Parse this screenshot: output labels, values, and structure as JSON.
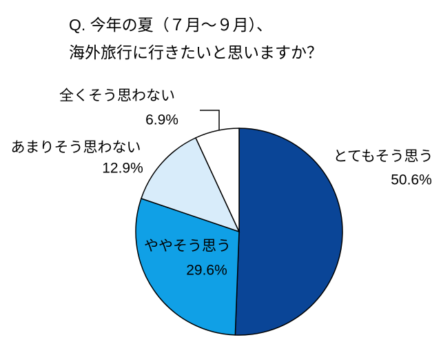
{
  "chart_data": {
    "type": "pie",
    "title": [
      "Q. 今年の夏（７月～９月）、",
      "海外旅行に行きたいと思いますか？"
    ],
    "categories": [
      "とてもそう思う",
      "ややそう思う",
      "あまりそう思わない",
      "全くそう思わない"
    ],
    "values": [
      50.6,
      29.6,
      12.9,
      6.9
    ],
    "value_labels": [
      "50.6%",
      "29.6%",
      "12.9%",
      "6.9%"
    ],
    "colors": [
      "#0a4597",
      "#10a0e6",
      "#d8ecfa",
      "#ffffff"
    ]
  }
}
